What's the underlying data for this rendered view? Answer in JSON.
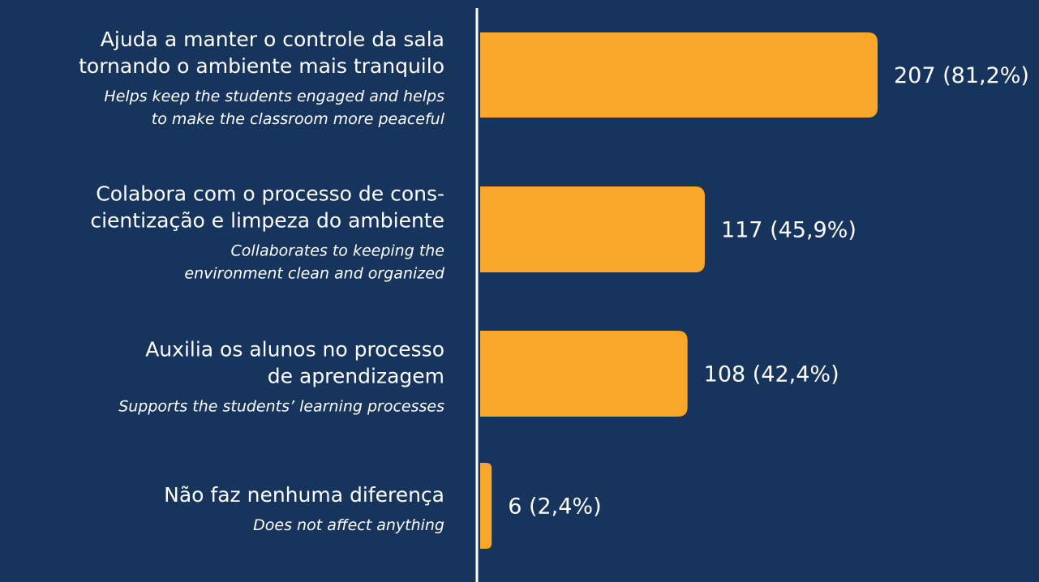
{
  "chart_data": {
    "type": "bar",
    "orientation": "horizontal",
    "categories": [
      [
        "Ajuda a manter o controle da sala",
        "tornando o ambiente mais tranquilo"
      ],
      [
        "Colabora com o processo de cons-",
        "cientização e limpeza do ambiente"
      ],
      [
        "Auxilia os alunos no processo",
        "de aprendizagem"
      ],
      [
        "Não faz nenhuma diferença"
      ]
    ],
    "translations": [
      [
        "Helps keep the students engaged and helps",
        "to make the classroom more peaceful"
      ],
      [
        "Collaborates to keeping the",
        "environment clean and organized"
      ],
      [
        "Supports the students’ learning processes"
      ],
      [
        "Does not affect anything"
      ]
    ],
    "values": [
      207,
      117,
      108,
      6
    ],
    "value_labels": [
      "207 (81,2%)",
      "117 (45,9%)",
      "108 (42,4%)",
      "6 (2,4%)"
    ],
    "color": "#f9a72b"
  }
}
